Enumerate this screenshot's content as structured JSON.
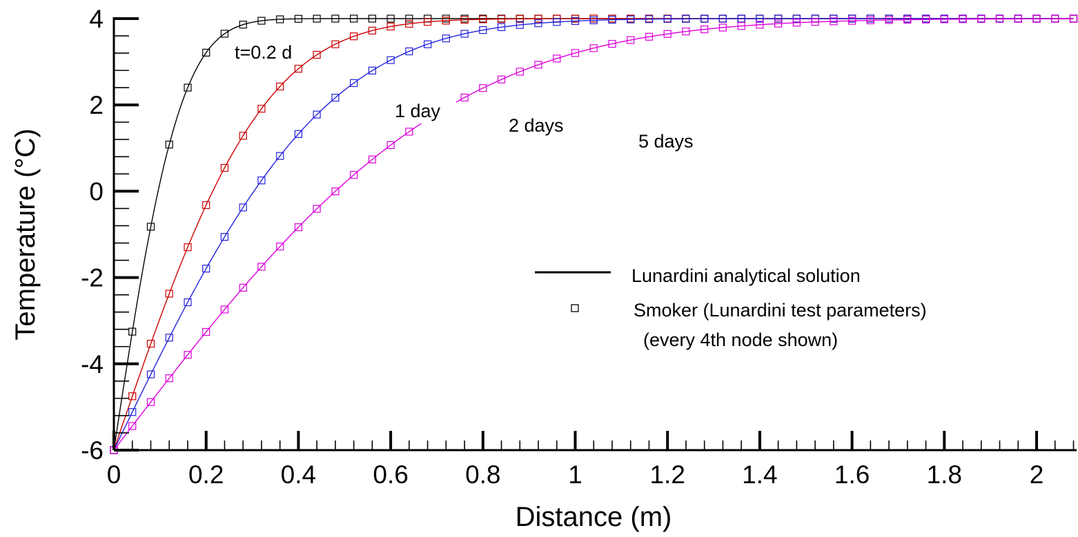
{
  "chart_data": {
    "type": "line",
    "xlabel": "Distance (m)",
    "ylabel": "Temperature (°C)",
    "xlim": [
      0,
      2.08
    ],
    "ylim": [
      -6,
      4
    ],
    "x_ticks": [
      0,
      0.2,
      0.4,
      0.6,
      0.8,
      1,
      1.2,
      1.4,
      1.6,
      1.8,
      2
    ],
    "x_tick_labels": [
      "0",
      "0.2",
      "0.4",
      "0.6",
      "0.8",
      "1",
      "1.2",
      "1.4",
      "1.6",
      "1.8",
      "2"
    ],
    "y_ticks": [
      -6,
      -4,
      -2,
      0,
      2,
      4
    ],
    "y_tick_labels": [
      "-6",
      "-4",
      "-2",
      "0",
      "2",
      "4"
    ],
    "grid": false,
    "legend_position": "center-right",
    "legend": {
      "line_label": "Lunardini analytical solution",
      "marker_label": "Smoker (Lunardini test parameters)",
      "marker_note": "(every 4th node shown)"
    },
    "marker_spacing": 0.04,
    "series": [
      {
        "label": "t=0.2 d",
        "color": "#000000",
        "T0": -6,
        "Tinf": 4,
        "length_scale": 0.161
      },
      {
        "label": "1 day",
        "color": "#cc0000",
        "T0": -6,
        "Tinf": 4,
        "length_scale": 0.36
      },
      {
        "label": "2 days",
        "color": "#2222dd",
        "T0": -6,
        "Tinf": 4,
        "length_scale": 0.51
      },
      {
        "label": "5 days",
        "color": "#dd00dd",
        "T0": -6,
        "Tinf": 4,
        "length_scale": 0.807
      }
    ]
  }
}
